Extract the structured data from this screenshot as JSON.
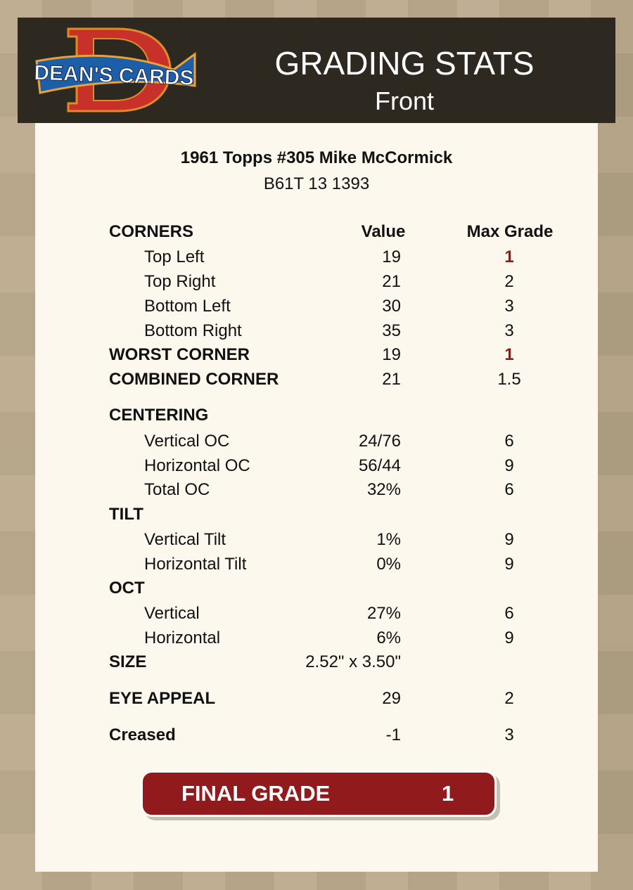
{
  "header": {
    "logo_text": "DEAN'S CARDS",
    "title": "GRADING STATS",
    "subtitle": "Front"
  },
  "card": {
    "name": "1961 Topps #305 Mike McCormick",
    "cert": "B61T 13 1393"
  },
  "columns": {
    "value": "Value",
    "max_grade": "Max Grade"
  },
  "rows": [
    {
      "label": "CORNERS",
      "value": "",
      "max": ""
    },
    {
      "label": "Top Left",
      "value": "19",
      "max": "1"
    },
    {
      "label": "Top Right",
      "value": "21",
      "max": "2"
    },
    {
      "label": "Bottom Left",
      "value": "30",
      "max": "3"
    },
    {
      "label": "Bottom Right",
      "value": "35",
      "max": "3"
    },
    {
      "label": "WORST CORNER",
      "value": "19",
      "max": "1"
    },
    {
      "label": "COMBINED CORNER",
      "value": "21",
      "max": "1.5"
    },
    {
      "label": "CENTERING",
      "value": "",
      "max": ""
    },
    {
      "label": "Vertical OC",
      "value": "24/76",
      "max": "6"
    },
    {
      "label": "Horizontal OC",
      "value": "56/44",
      "max": "9"
    },
    {
      "label": "Total OC",
      "value": "32%",
      "max": "6"
    },
    {
      "label": "TILT",
      "value": "",
      "max": ""
    },
    {
      "label": "Vertical Tilt",
      "value": "1%",
      "max": "9"
    },
    {
      "label": "Horizontal Tilt",
      "value": "0%",
      "max": "9"
    },
    {
      "label": "OCT",
      "value": "",
      "max": ""
    },
    {
      "label": "Vertical",
      "value": "27%",
      "max": "6"
    },
    {
      "label": "Horizontal",
      "value": "6%",
      "max": "9"
    },
    {
      "label": "SIZE",
      "value": "2.52\" x 3.50\"",
      "max": ""
    },
    {
      "label": "EYE APPEAL",
      "value": "29",
      "max": "2"
    },
    {
      "label": "Creased",
      "value": "-1",
      "max": "3"
    }
  ],
  "final": {
    "label": "FINAL GRADE",
    "value": "1"
  },
  "colors": {
    "header_bg": "#2e2920",
    "panel_bg": "#fcf8ee",
    "accent_red": "#911a1c"
  }
}
